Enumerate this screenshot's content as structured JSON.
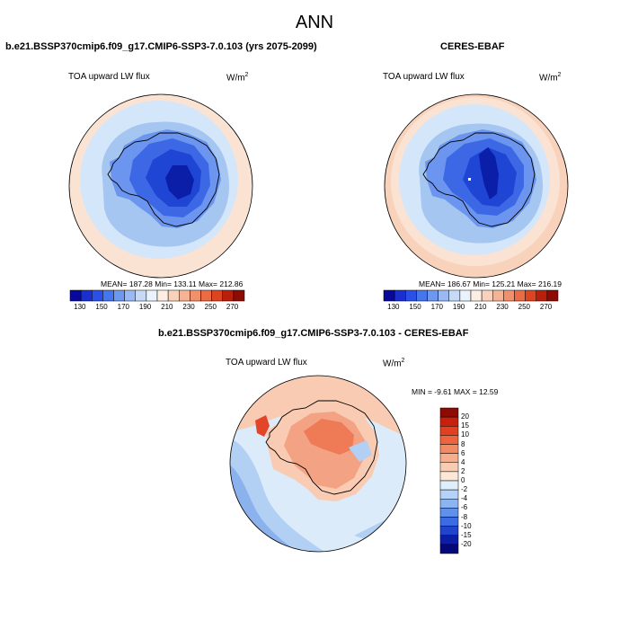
{
  "title": "ANN",
  "panels": [
    {
      "case": "b.e21.BSSP370cmip6.f09_g17.CMIP6-SSP3-7.0.103 (yrs 2075-2099)",
      "variable": "TOA upward LW flux",
      "unit_base": "W/m",
      "unit_sup": "2",
      "stats": "MEAN= 187.28  Min= 133.11  Max= 212.86"
    },
    {
      "case": "CERES-EBAF",
      "variable": "TOA upward LW flux",
      "unit_base": "W/m",
      "unit_sup": "2",
      "stats": "MEAN= 186.67  Min= 125.21  Max= 216.19"
    },
    {
      "case": "b.e21.BSSP370cmip6.f09_g17.CMIP6-SSP3-7.0.103 - CERES-EBAF",
      "variable": "TOA upward LW flux",
      "unit_base": "W/m",
      "unit_sup": "2",
      "stats": "MIN =  -9.61 MAX =  12.59"
    }
  ],
  "abs_colorbar": {
    "ticks": [
      "130",
      "150",
      "170",
      "190",
      "210",
      "230",
      "250",
      "270"
    ],
    "colors": [
      "#08089a",
      "#1a2fd0",
      "#2a50e8",
      "#4676ee",
      "#6e98f0",
      "#9ab8f4",
      "#c6daf8",
      "#eaf3fc",
      "#fdeee4",
      "#f9d2bc",
      "#f6b394",
      "#f2906c",
      "#ec6a44",
      "#dc4422",
      "#b8200c",
      "#8c0c04"
    ]
  },
  "diff_colorbar": {
    "ticks": [
      "20",
      "15",
      "10",
      "8",
      "6",
      "4",
      "2",
      "0",
      "-2",
      "-4",
      "-6",
      "-8",
      "-10",
      "-15",
      "-20"
    ],
    "colors": [
      "#8c0c04",
      "#c8200c",
      "#e24020",
      "#ee643e",
      "#f28a64",
      "#f6ae8c",
      "#f9ccb2",
      "#fde8d8",
      "#dfeefb",
      "#b6d2f6",
      "#8cb4f0",
      "#6090ea",
      "#3c6ce4",
      "#2044cc",
      "#0c1ea8",
      "#06087a"
    ]
  },
  "map_colors": {
    "ocean_low": "#fbe3d4",
    "ocean_mid": "#d4e6fa",
    "ring": "#a6c6f2",
    "continent_outer": "#6b95ee",
    "continent_mid": "#3c68e6",
    "continent_inner": "#1e45d4",
    "continent_core": "#0a1ea8",
    "diff_warm_1": "#f9cbb2",
    "diff_warm_2": "#f3a284",
    "diff_warm_3": "#ee7a56",
    "diff_warm_4": "#e2452a",
    "diff_cool_1": "#dcebfa",
    "diff_cool_2": "#b2cff4",
    "diff_cool_3": "#8cb2ee"
  }
}
